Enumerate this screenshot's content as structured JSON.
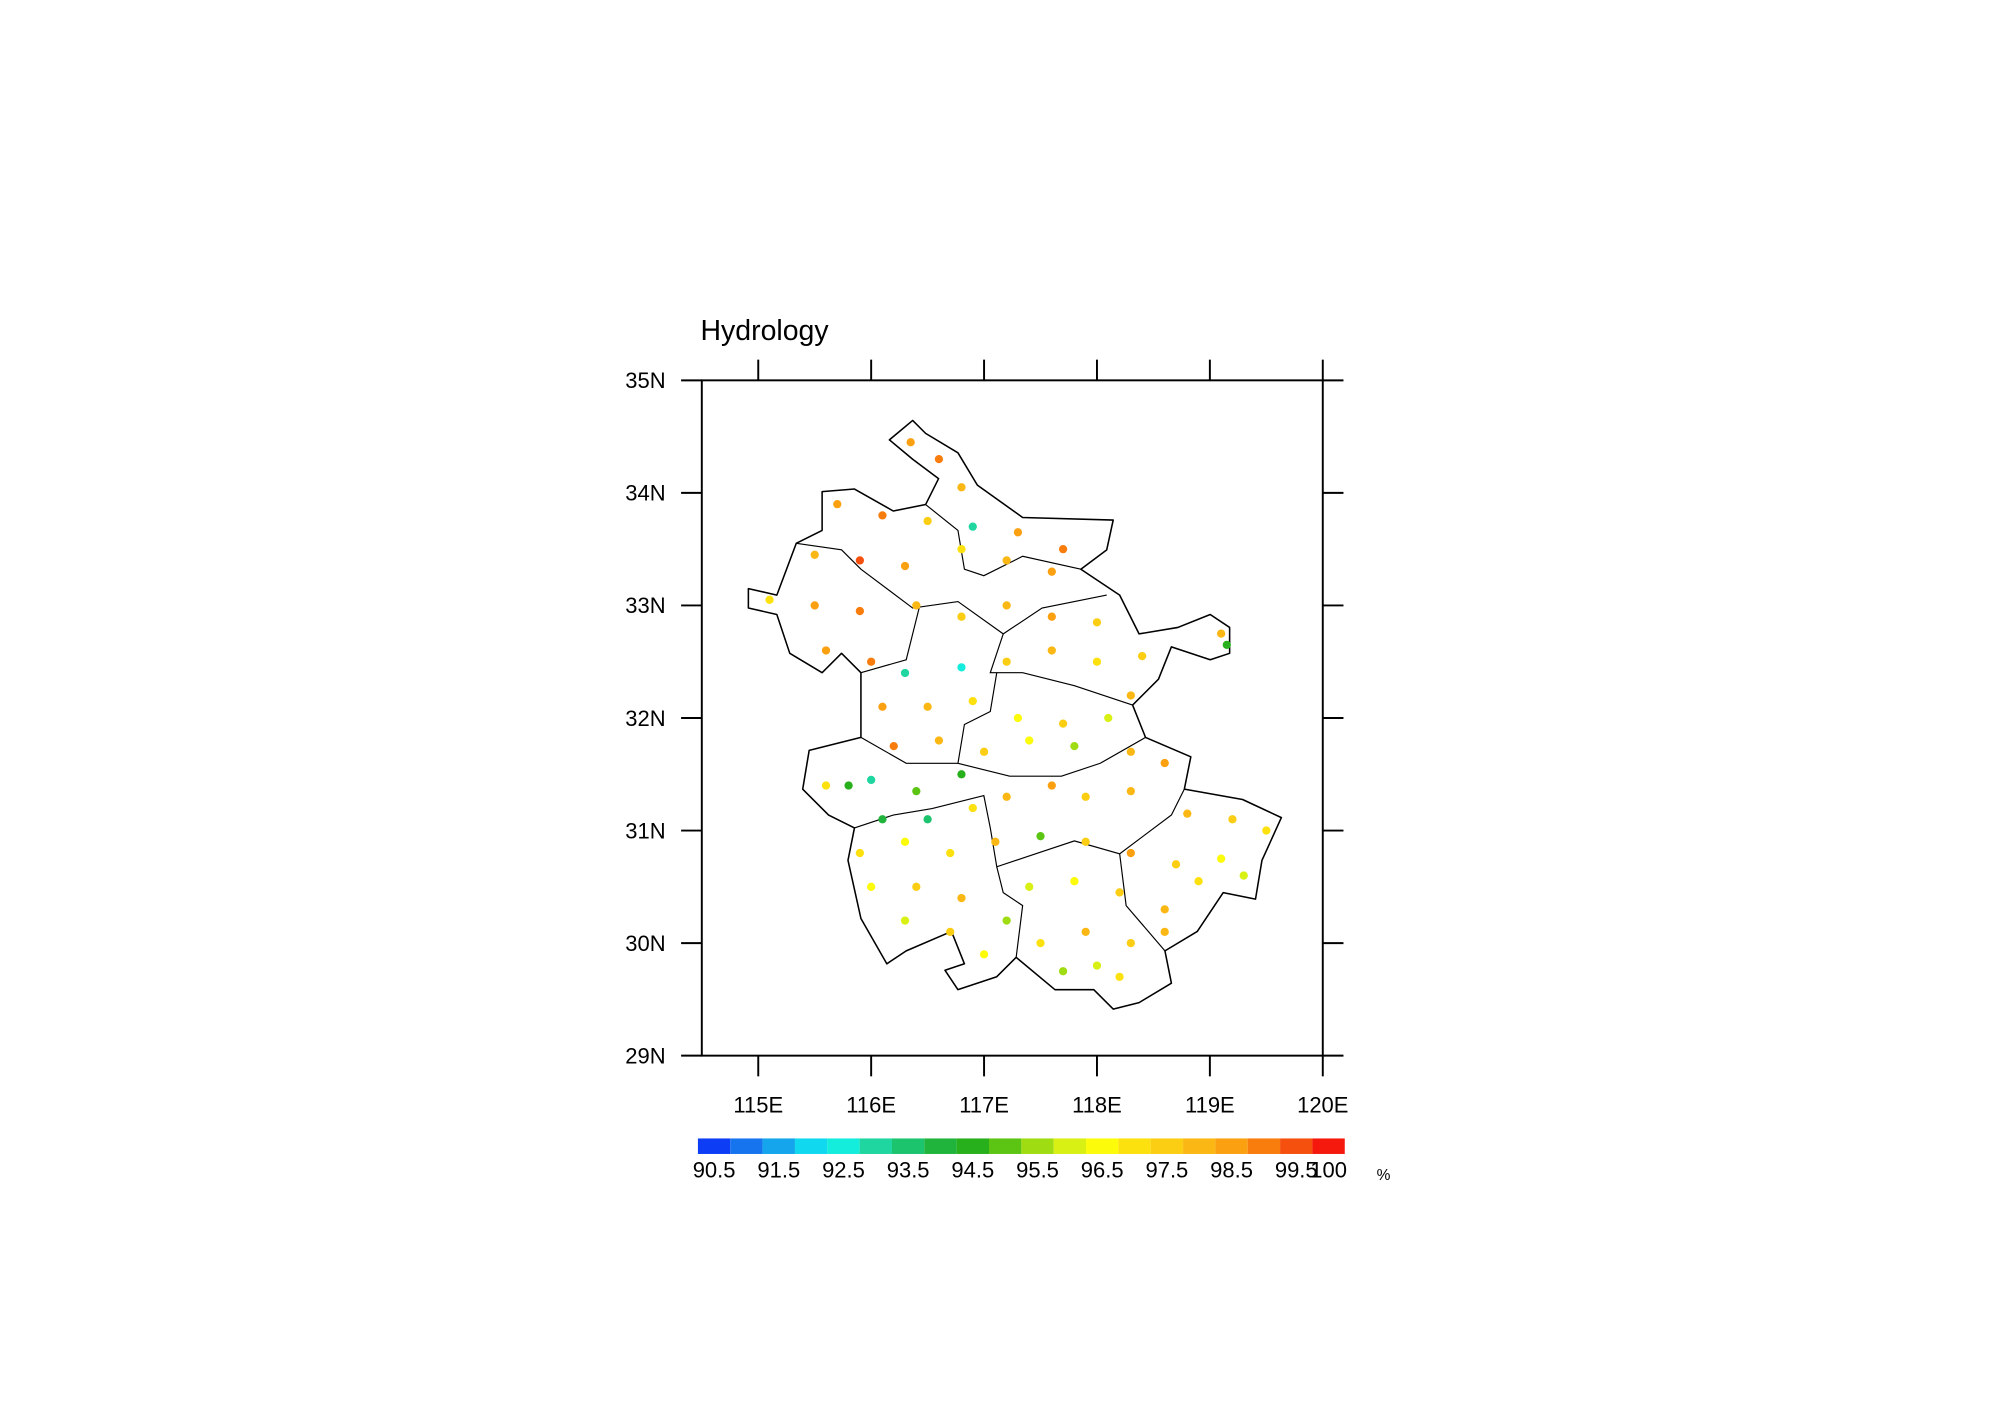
{
  "chart_data": {
    "type": "scatter",
    "title": "Hydrology",
    "xlim": [
      114.5,
      120
    ],
    "ylim": [
      29,
      35
    ],
    "xticks": [
      {
        "value": 115,
        "label": "115E"
      },
      {
        "value": 116,
        "label": "116E"
      },
      {
        "value": 117,
        "label": "117E"
      },
      {
        "value": 118,
        "label": "118E"
      },
      {
        "value": 119,
        "label": "119E"
      },
      {
        "value": 120,
        "label": "120E"
      }
    ],
    "yticks": [
      {
        "value": 29,
        "label": "29N"
      },
      {
        "value": 30,
        "label": "30N"
      },
      {
        "value": 31,
        "label": "31N"
      },
      {
        "value": 32,
        "label": "32N"
      },
      {
        "value": 33,
        "label": "33N"
      },
      {
        "value": 34,
        "label": "34N"
      },
      {
        "value": 35,
        "label": "35N"
      }
    ],
    "x": [
      116.35,
      116.6,
      116.8,
      115.7,
      116.1,
      116.5,
      116.9,
      117.3,
      117.7,
      115.5,
      115.9,
      116.3,
      116.8,
      117.2,
      117.6,
      115.1,
      115.5,
      115.9,
      116.4,
      116.8,
      117.2,
      117.6,
      118.0,
      119.1,
      119.15,
      115.6,
      116.0,
      116.3,
      116.8,
      117.2,
      117.6,
      118.0,
      118.4,
      116.1,
      116.5,
      116.9,
      117.3,
      117.7,
      118.1,
      118.3,
      116.2,
      116.6,
      117.0,
      117.4,
      117.8,
      118.3,
      118.6,
      115.6,
      115.8,
      116.0,
      116.4,
      116.8,
      117.2,
      117.6,
      117.9,
      118.3,
      116.1,
      116.5,
      116.9,
      118.8,
      119.2,
      119.5,
      115.9,
      116.3,
      116.7,
      117.1,
      117.5,
      117.9,
      118.3,
      118.7,
      119.1,
      119.3,
      116.0,
      116.4,
      116.8,
      117.4,
      117.8,
      118.2,
      118.6,
      118.9,
      116.3,
      116.7,
      117.2,
      117.5,
      117.9,
      118.3,
      118.6,
      117.0,
      117.7,
      118.0,
      118.2
    ],
    "y": [
      34.45,
      34.3,
      34.05,
      33.9,
      33.8,
      33.75,
      33.7,
      33.65,
      33.5,
      33.45,
      33.4,
      33.35,
      33.5,
      33.4,
      33.3,
      33.05,
      33.0,
      32.95,
      33.0,
      32.9,
      33.0,
      32.9,
      32.85,
      32.75,
      32.65,
      32.6,
      32.5,
      32.4,
      32.45,
      32.5,
      32.6,
      32.5,
      32.55,
      32.1,
      32.1,
      32.15,
      32.0,
      31.95,
      32.0,
      32.2,
      31.75,
      31.8,
      31.7,
      31.8,
      31.75,
      31.7,
      31.6,
      31.4,
      31.4,
      31.45,
      31.35,
      31.5,
      31.3,
      31.4,
      31.3,
      31.35,
      31.1,
      31.1,
      31.2,
      31.15,
      31.1,
      31.0,
      30.8,
      30.9,
      30.8,
      30.9,
      30.95,
      30.9,
      30.8,
      30.7,
      30.75,
      30.6,
      30.5,
      30.5,
      30.4,
      30.5,
      30.55,
      30.45,
      30.3,
      30.55,
      30.2,
      30.1,
      30.2,
      30.0,
      30.1,
      30.0,
      30.1,
      29.9,
      29.75,
      29.8,
      29.7
    ],
    "values": [
      98.5,
      99,
      98,
      98.5,
      99,
      97.5,
      93,
      98.5,
      99,
      98,
      99.5,
      98.5,
      97,
      98,
      98.5,
      97,
      98.5,
      99,
      98,
      97.5,
      98,
      98.5,
      97.5,
      98,
      94.5,
      98.5,
      99,
      93,
      92.5,
      97.5,
      98,
      97,
      97.5,
      98.5,
      98,
      97,
      96.5,
      97.5,
      96,
      98,
      99,
      98,
      97.5,
      96.5,
      95.5,
      98,
      98.5,
      97,
      94.5,
      93,
      95,
      94.5,
      98,
      98.5,
      97.5,
      98,
      94,
      93.5,
      97,
      98,
      97.5,
      97,
      97,
      96.5,
      97,
      98,
      95,
      97.5,
      98.5,
      97.5,
      96.5,
      96,
      96.5,
      97.5,
      98,
      96,
      96.5,
      97.5,
      98,
      97,
      96,
      97.5,
      95.5,
      97,
      98,
      97.5,
      98,
      96.5,
      95.5,
      96,
      97
    ],
    "colorbar": {
      "levels": [
        90.5,
        91,
        91.5,
        92,
        92.5,
        93,
        93.5,
        94,
        94.5,
        95,
        95.5,
        96,
        96.5,
        97,
        97.5,
        98,
        98.5,
        99,
        99.5,
        100
      ],
      "colors": [
        "#0d3ef5",
        "#1674ee",
        "#14a5ec",
        "#0fd8ef",
        "#14ecdc",
        "#1fd6a0",
        "#1cc46e",
        "#20b43c",
        "#27b01b",
        "#5cc514",
        "#9fdd12",
        "#d8f014",
        "#fcfc0a",
        "#fde10f",
        "#fbcd13",
        "#fbb814",
        "#fba010",
        "#f87d0c",
        "#f5500d",
        "#f5190d"
      ],
      "ticks": [
        90.5,
        91.5,
        92.5,
        93.5,
        94.5,
        95.5,
        96.5,
        97.5,
        98.5,
        99.5,
        100
      ],
      "unit": "%"
    }
  }
}
